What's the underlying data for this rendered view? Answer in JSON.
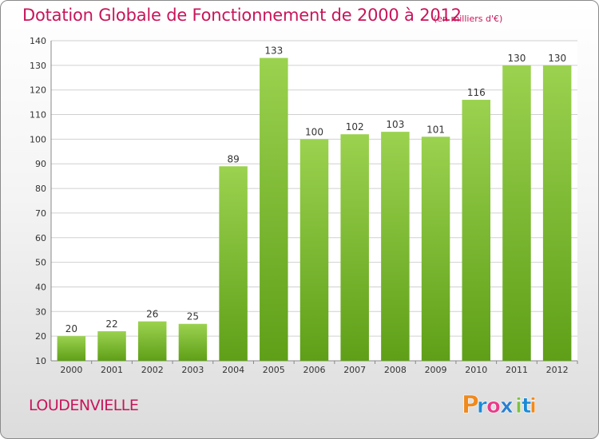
{
  "chart_data": {
    "type": "bar",
    "title": "Dotation Globale de Fonctionnement de 2000 à 2012",
    "subtitle": "(en milliers d'€)",
    "categories": [
      "2000",
      "2001",
      "2002",
      "2003",
      "2004",
      "2005",
      "2006",
      "2007",
      "2008",
      "2009",
      "2010",
      "2011",
      "2012"
    ],
    "values": [
      20,
      22,
      26,
      25,
      89,
      133,
      100,
      102,
      103,
      101,
      116,
      130,
      130
    ],
    "ylim": [
      10,
      140
    ],
    "yticks": [
      10,
      20,
      30,
      40,
      50,
      60,
      70,
      80,
      90,
      100,
      110,
      120,
      130,
      140
    ],
    "grid": true,
    "bar_color_top": "#9bd24f",
    "bar_color_bottom": "#5f9f18"
  },
  "commune": "LOUDENVIELLE",
  "logo": {
    "text": "Proxiti",
    "letters": [
      "P",
      "r",
      "o",
      "x",
      "i",
      "t",
      "i"
    ],
    "colors": [
      "#f08a1c",
      "#1a8ad6",
      "#e83a8a",
      "#2a7fd0",
      "#7cc242",
      "#1a8ad6",
      "#f08a1c"
    ]
  }
}
